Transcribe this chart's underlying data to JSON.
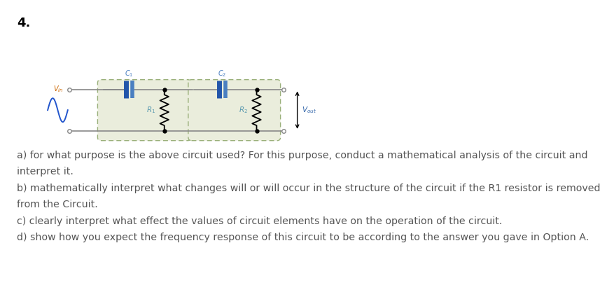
{
  "title_number": "4.",
  "title_fontsize": 13,
  "bg_color": "#ffffff",
  "circuit": {
    "box_color": "#eaeddc",
    "box_border_color": "#9ab07a",
    "wire_color": "#888888",
    "cap_color": "#4a7fc1",
    "cap_plate_color": "#2255aa",
    "resistor_color": "#000000",
    "label_color_cap": "#4a7fc1",
    "label_color_res": "#5a9ab0",
    "source_color": "#2255cc",
    "vin_label_color": "#cc6600",
    "vout_color": "#3366aa",
    "terminal_color": "#888888"
  },
  "text_lines": [
    "a) for what purpose is the above circuit used? For this purpose, conduct a mathematical analysis of the circuit and",
    "interpret it.",
    "b) mathematically interpret what changes will or will occur in the structure of the circuit if the R1 resistor is removed",
    "from the Circuit.",
    "c) clearly interpret what effect the values of circuit elements have on the operation of the circuit.",
    "d) show how you expect the frequency response of this circuit to be according to the answer you gave in Option A."
  ],
  "text_fontsize": 10.2,
  "text_color": "#555555"
}
